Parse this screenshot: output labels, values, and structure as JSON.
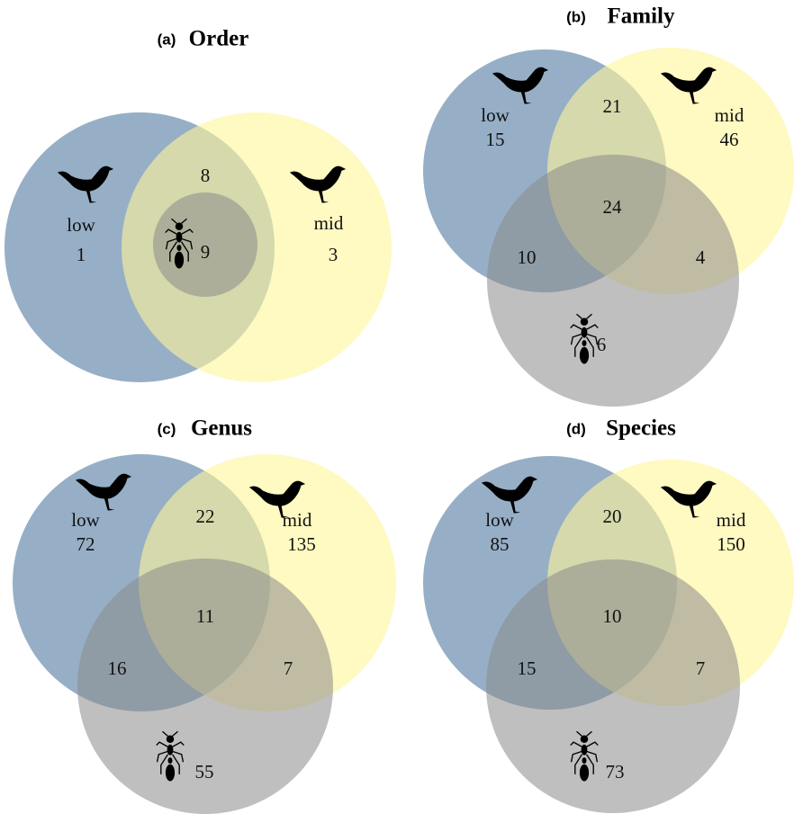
{
  "panels": [
    {
      "tag": "(a)",
      "title": "Order",
      "sets": [
        {
          "label": "low",
          "count": 1
        },
        {
          "label": "mid",
          "count": 3
        }
      ],
      "regions": [
        8,
        9
      ]
    },
    {
      "tag": "(b)",
      "title": "Family",
      "sets": [
        {
          "label": "low",
          "count": 15
        },
        {
          "label": "mid",
          "count": 46
        }
      ],
      "regions": [
        21,
        24,
        10,
        4,
        6
      ]
    },
    {
      "tag": "(c)",
      "title": "Genus",
      "sets": [
        {
          "label": "low",
          "count": 72
        },
        {
          "label": "mid",
          "count": 135
        }
      ],
      "regions": [
        22,
        11,
        16,
        7,
        55
      ]
    },
    {
      "tag": "(d)",
      "title": "Species",
      "sets": [
        {
          "label": "low",
          "count": 85
        },
        {
          "label": "mid",
          "count": 150
        }
      ],
      "regions": [
        20,
        10,
        15,
        7,
        73
      ]
    }
  ]
}
